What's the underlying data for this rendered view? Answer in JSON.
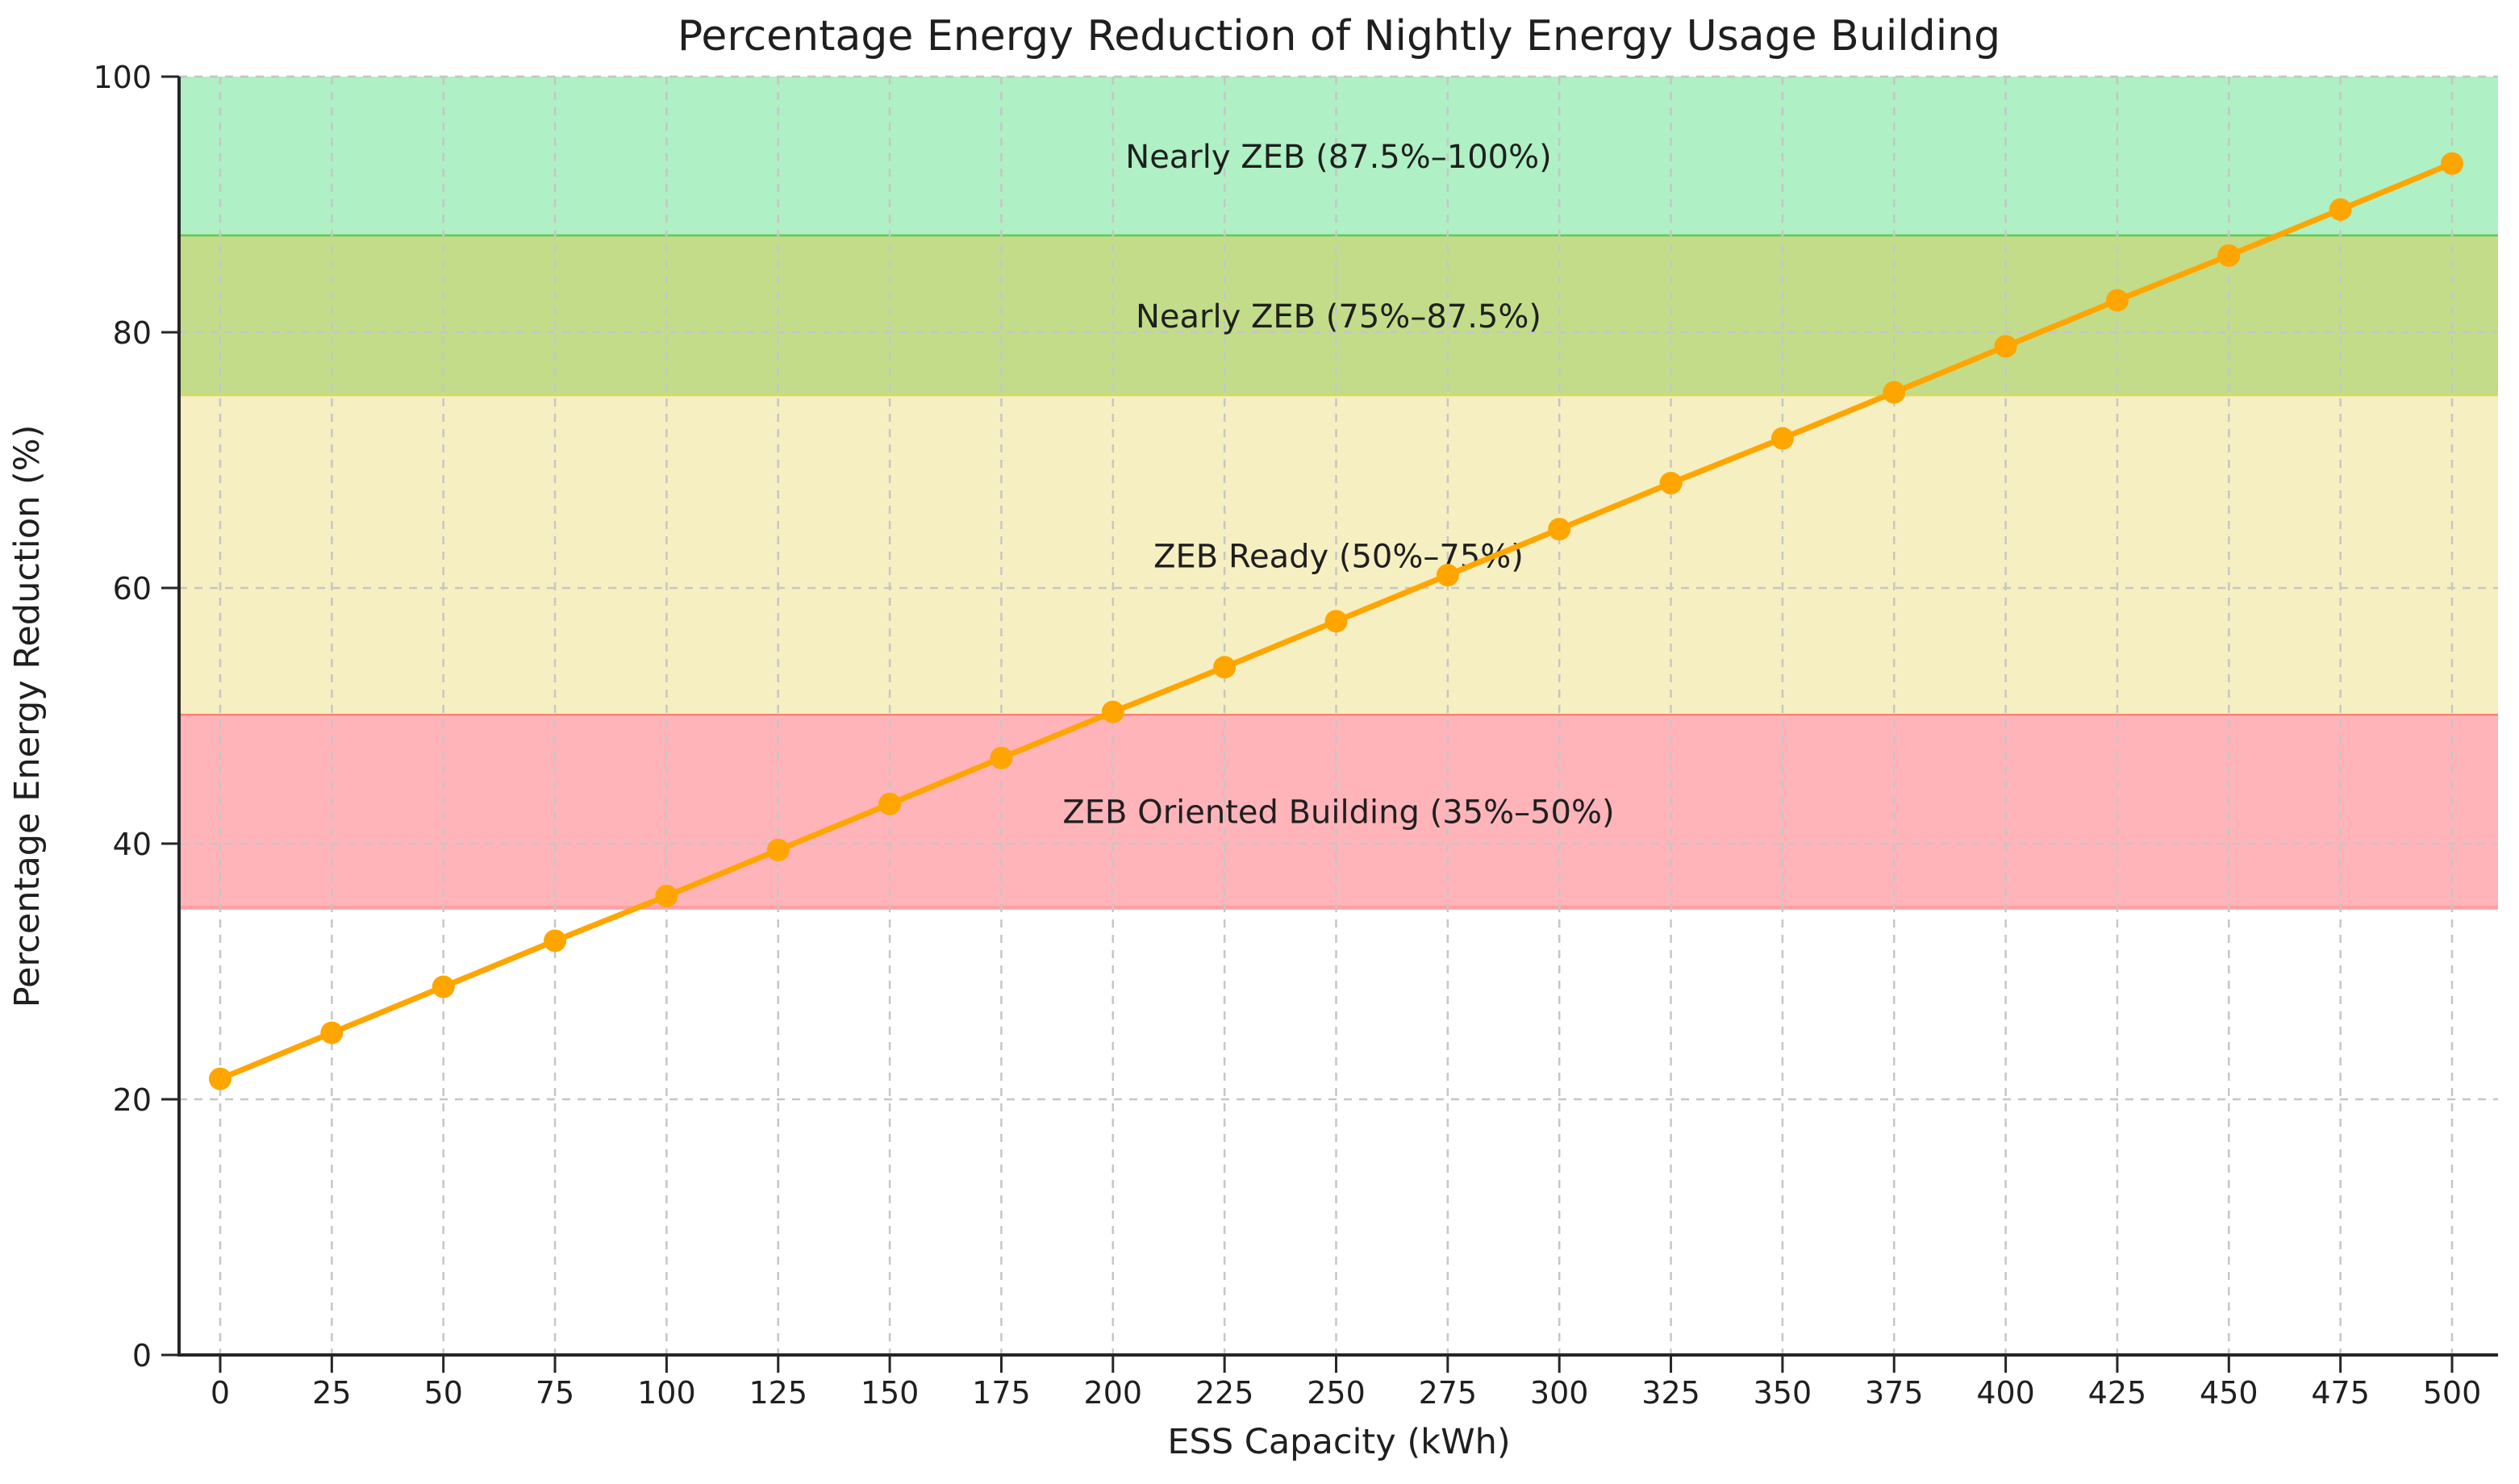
{
  "chart_data": {
    "type": "line",
    "title": "Percentage Energy Reduction of Nightly Energy Usage Building",
    "xlabel": "ESS Capacity (kWh)",
    "ylabel": "Percentage Energy Reduction (%)",
    "x": [
      0,
      25,
      50,
      75,
      100,
      125,
      150,
      175,
      200,
      225,
      250,
      275,
      300,
      325,
      350,
      375,
      400,
      425,
      450,
      475,
      500
    ],
    "values": [
      21.6,
      25.2,
      28.8,
      32.4,
      35.9,
      39.5,
      43.1,
      46.7,
      50.3,
      53.8,
      57.4,
      61.0,
      64.6,
      68.2,
      71.7,
      75.3,
      78.9,
      82.5,
      86.0,
      89.6,
      93.2
    ],
    "line_color": "#ffa500",
    "marker": "circle",
    "xlim": [
      0,
      500
    ],
    "ylim": [
      0,
      100
    ],
    "xticks": [
      0,
      25,
      50,
      75,
      100,
      125,
      150,
      175,
      200,
      225,
      250,
      275,
      300,
      325,
      350,
      375,
      400,
      425,
      450,
      475,
      500
    ],
    "yticks": [
      0,
      20,
      40,
      60,
      80,
      100
    ],
    "grid": true,
    "grid_color": "#c6c6c6",
    "legend": "none",
    "bands": [
      {
        "label": "Nearly ZEB (87.5%–100%)",
        "from": 87.5,
        "to": 100,
        "fill": "#aff0c4",
        "edge": "#5ecb4e"
      },
      {
        "label": "Nearly ZEB (75%–87.5%)",
        "from": 75,
        "to": 87.5,
        "fill": "#c3dc8a",
        "edge": "#d9d95c"
      },
      {
        "label": "ZEB Ready (50%–75%)",
        "from": 50,
        "to": 75,
        "fill": "#f6efc1",
        "edge": "#fb8274"
      },
      {
        "label": "ZEB Oriented Building (35%–50%)",
        "from": 35,
        "to": 50,
        "fill": "#ffb4ba",
        "edge": "#ff9fa5"
      }
    ]
  }
}
